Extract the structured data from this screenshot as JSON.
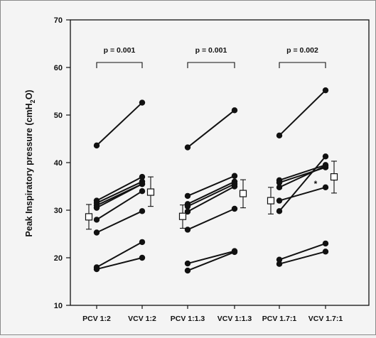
{
  "chart_data": {
    "type": "scatter",
    "ylabel": "Peak Inspiratory pressure (cmH",
    "ylabel_sub": "2",
    "ylabel_end": "O)",
    "ylim": [
      10,
      70
    ],
    "yticks": [
      "10",
      "20",
      "30",
      "40",
      "50",
      "60",
      "70"
    ],
    "categories": [
      "PCV 1:2",
      "VCV 1:2",
      "PCV 1:1.3",
      "VCV 1:1.3",
      "PCV 1.7:1",
      "VCV 1.7:1"
    ],
    "groups": [
      {
        "p_label": "p = 0.001",
        "pairs": [
          [
            43.6,
            52.6
          ],
          [
            32.0,
            37.0
          ],
          [
            31.5,
            36.0
          ],
          [
            31.0,
            35.5
          ],
          [
            30.5,
            35.5
          ],
          [
            28.0,
            34.0
          ],
          [
            25.3,
            29.8
          ],
          [
            18.0,
            23.3
          ],
          [
            17.6,
            20.0
          ]
        ],
        "mean_left": {
          "mean": 28.6,
          "sd_low": 26.0,
          "sd_high": 31.2
        },
        "mean_right": {
          "mean": 33.8,
          "sd_low": 30.8,
          "sd_high": 37.0
        }
      },
      {
        "p_label": "p = 0.001",
        "pairs": [
          [
            43.2,
            51.0
          ],
          [
            33.0,
            37.2
          ],
          [
            31.3,
            36.0
          ],
          [
            30.8,
            35.5
          ],
          [
            29.7,
            35.0
          ],
          [
            25.9,
            30.3
          ],
          [
            18.8,
            21.4
          ],
          [
            17.3,
            21.2
          ]
        ],
        "mean_left": {
          "mean": 28.7,
          "sd_low": 26.2,
          "sd_high": 31.1
        },
        "mean_right": {
          "mean": 33.5,
          "sd_low": 30.5,
          "sd_high": 36.4
        }
      },
      {
        "p_label": "p = 0.002",
        "pairs": [
          [
            45.7,
            55.2
          ],
          [
            36.3,
            39.5
          ],
          [
            35.8,
            39.0
          ],
          [
            34.8,
            39.3
          ],
          [
            32.0,
            34.8
          ],
          [
            29.8,
            41.3
          ],
          [
            19.6,
            23.0
          ],
          [
            18.7,
            21.3
          ]
        ],
        "mean_left": {
          "mean": 32.0,
          "sd_low": 29.2,
          "sd_high": 34.8
        },
        "mean_right": {
          "mean": 37.0,
          "sd_low": 33.6,
          "sd_high": 40.3
        }
      }
    ],
    "annotations": [
      {
        "text": "*",
        "x": "VCV 1.7:1",
        "y": 35.8
      }
    ],
    "grid": false
  }
}
